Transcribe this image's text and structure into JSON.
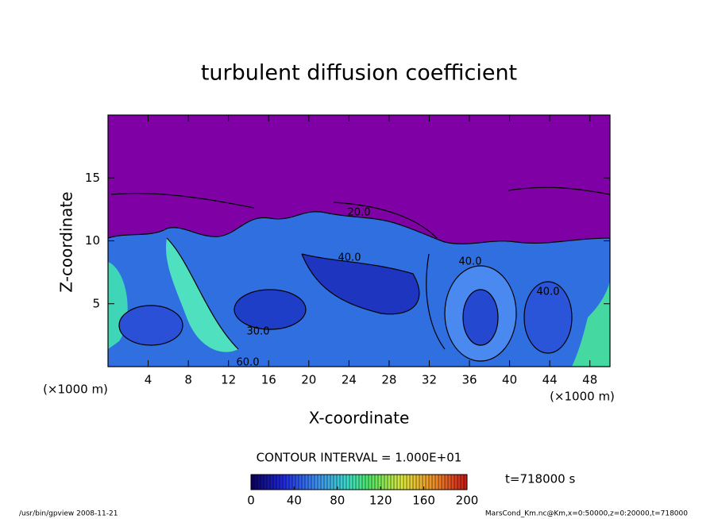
{
  "chart_data": {
    "type": "contour",
    "title": "turbulent diffusion coefficient",
    "xlabel": "X-coordinate",
    "x_unit": "(×1000 m)",
    "ylabel": "Z-coordinate",
    "y_unit": "(×1000 m)",
    "xlim": [
      0,
      50
    ],
    "xticks": [
      4,
      8,
      12,
      16,
      20,
      24,
      28,
      32,
      36,
      40,
      44,
      48
    ],
    "ylim": [
      0,
      20
    ],
    "yticks": [
      5,
      10,
      15
    ],
    "contour_labels": [
      "20.0",
      "40.0",
      "40.0",
      "30.0",
      "60.0",
      "40.0"
    ],
    "colorbar": {
      "label": "CONTOUR INTERVAL = 1.000E+01",
      "lim": [
        0,
        200
      ],
      "ticks": [
        0,
        40,
        80,
        120,
        160,
        200
      ]
    },
    "annotations": [
      "t=718000 s"
    ],
    "footer": [
      "/usr/bin/gpview  2008-11-21",
      "MarsCond_Km.nc@Km,x=0:50000,z=0:20000,t=718000"
    ]
  }
}
